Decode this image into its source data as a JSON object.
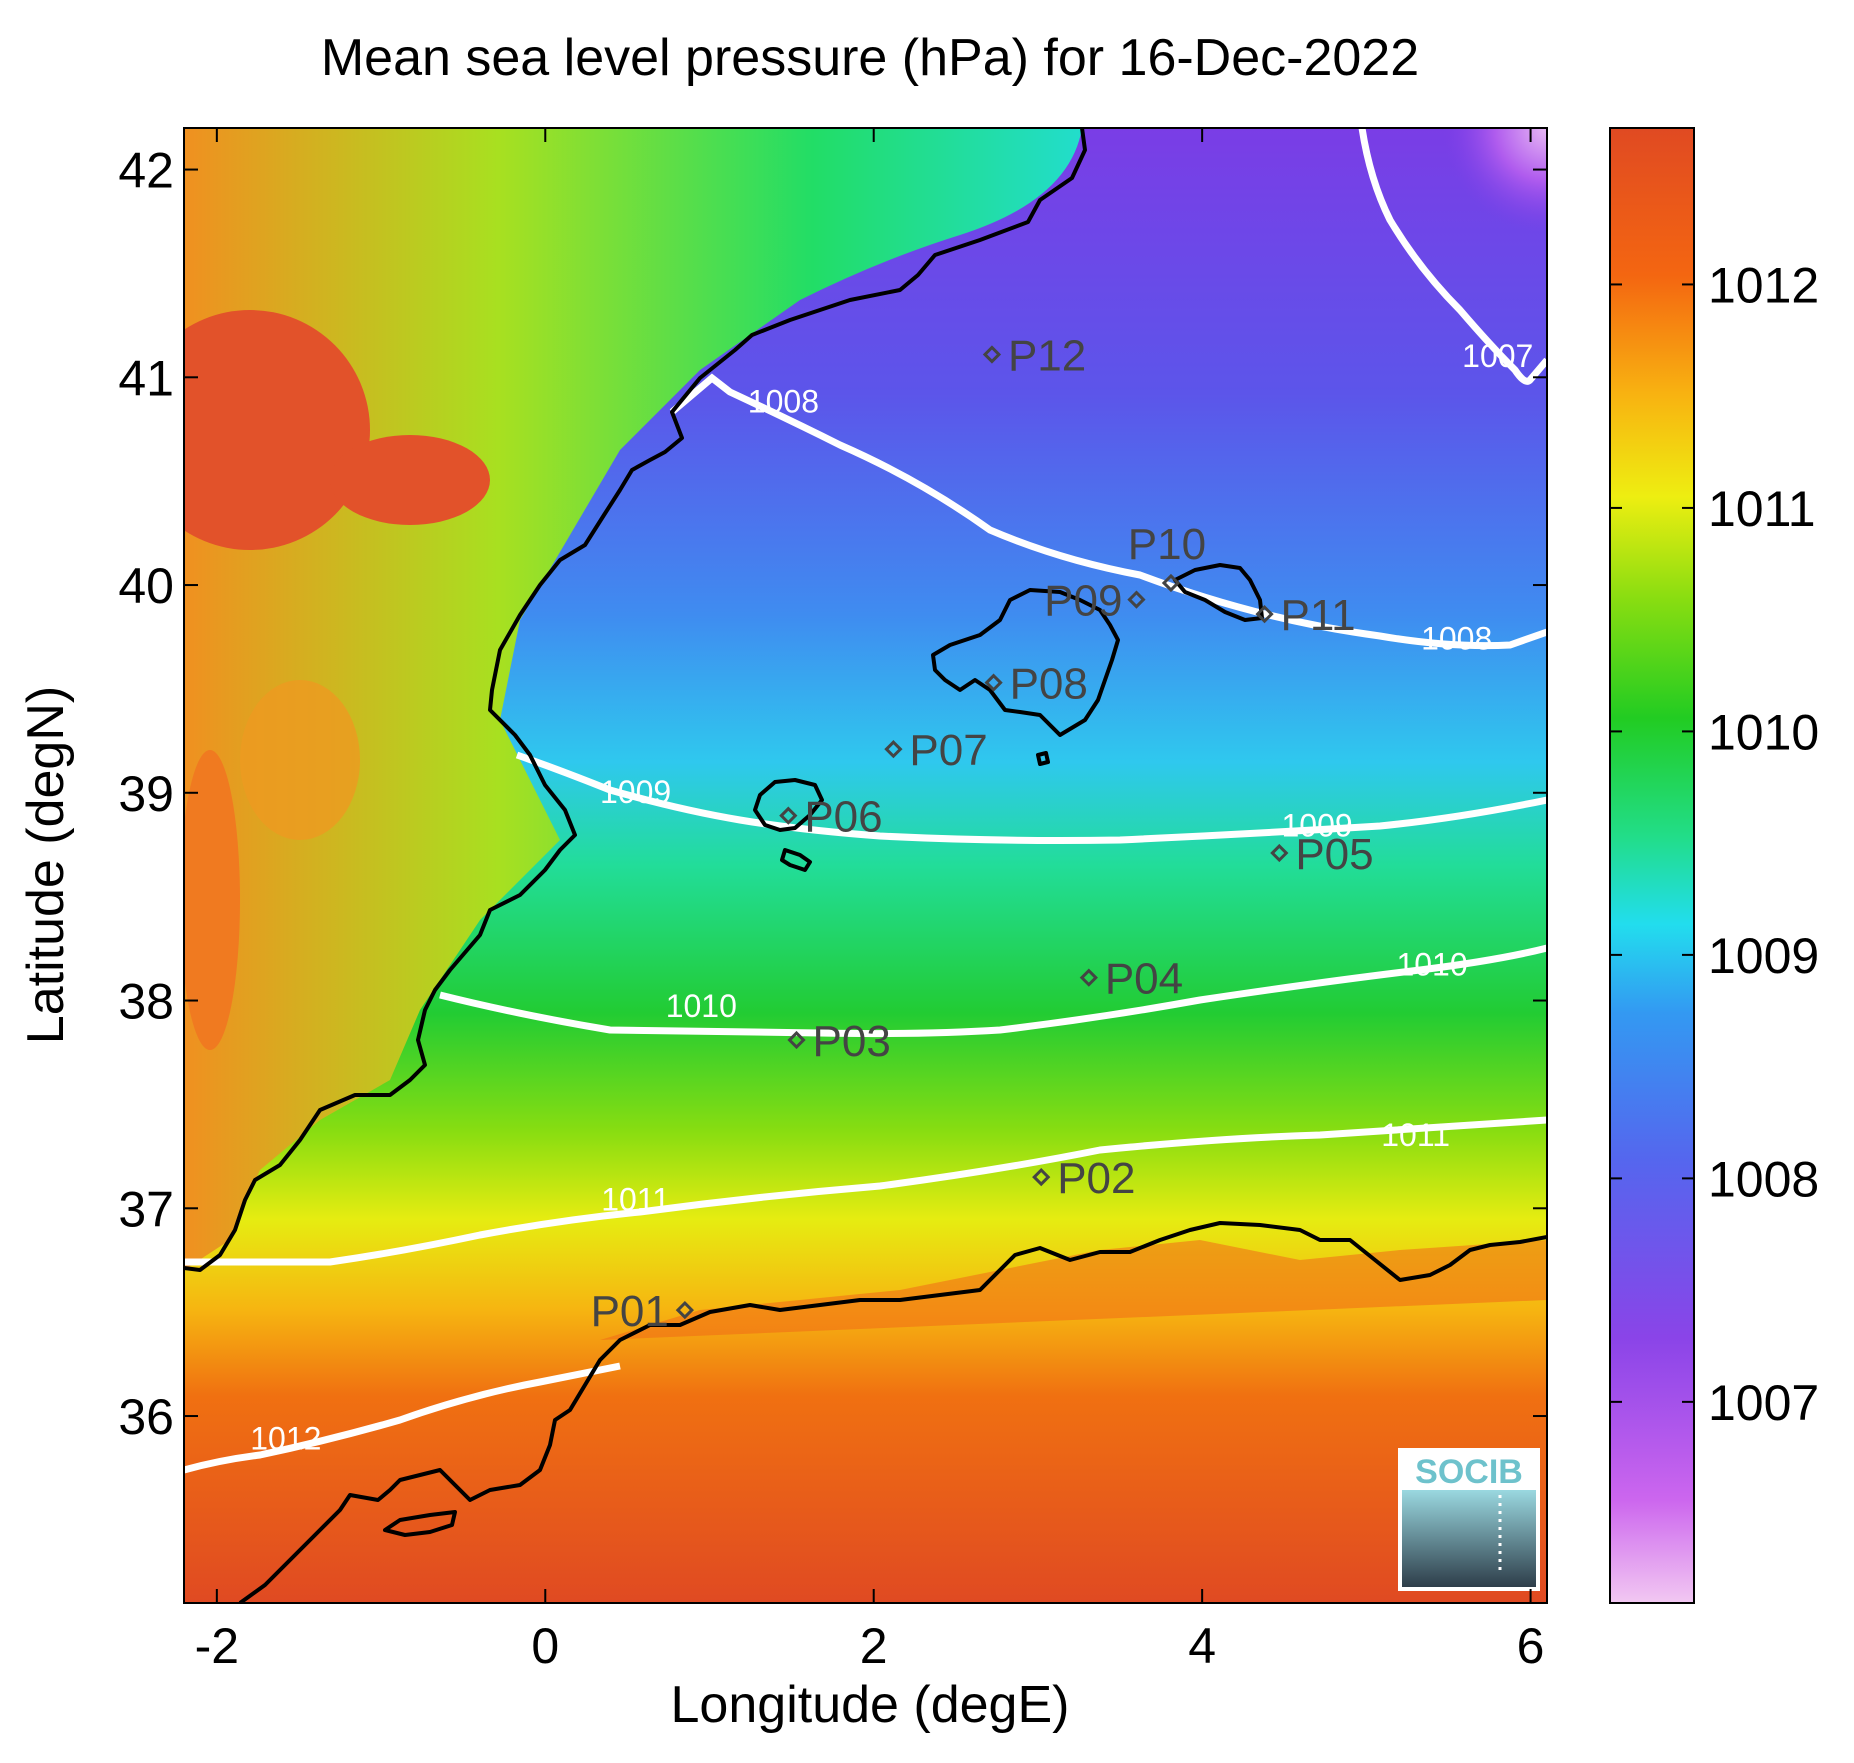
{
  "title": "Mean sea level pressure (hPa) for 16-Dec-2022",
  "xlabel": "Longitude (degE)",
  "ylabel": "Latitude (degN)",
  "x_ticks": [
    "-2",
    "0",
    "2",
    "4",
    "6"
  ],
  "y_ticks": [
    "42",
    "41",
    "40",
    "39",
    "38",
    "37",
    "36"
  ],
  "x_tick_values": [
    -2,
    0,
    2,
    4,
    6
  ],
  "y_tick_values": [
    42,
    41,
    40,
    39,
    38,
    37,
    36
  ],
  "xlim": [
    -2.2,
    6.1
  ],
  "ylim": [
    35.1,
    42.2
  ],
  "colorbar": {
    "ticks": [
      "1012",
      "1011",
      "1010",
      "1009",
      "1008",
      "1007"
    ],
    "tick_values": [
      1012,
      1011,
      1010,
      1009,
      1008,
      1007
    ],
    "range": [
      1006.1,
      1012.7
    ],
    "colors": [
      "#f2c8f2",
      "#cc66ee",
      "#8a44e8",
      "#5566ee",
      "#3399f2",
      "#22ddee",
      "#22dd88",
      "#22cc22",
      "#88dd11",
      "#eeee11",
      "#f8b211",
      "#f46611",
      "#e04a22"
    ]
  },
  "contours": [
    {
      "label": "1007",
      "label_pos": [
        5.8,
        41.05
      ]
    },
    {
      "label": "1008",
      "label_pos": [
        1.45,
        40.83
      ]
    },
    {
      "label": "1008",
      "label_pos": [
        5.55,
        39.69
      ]
    },
    {
      "label": "1009",
      "label_pos": [
        0.55,
        38.95
      ]
    },
    {
      "label": "1009",
      "label_pos": [
        4.7,
        38.79
      ]
    },
    {
      "label": "1010",
      "label_pos": [
        0.95,
        37.92
      ]
    },
    {
      "label": "1010",
      "label_pos": [
        5.4,
        38.12
      ]
    },
    {
      "label": "1011",
      "label_pos": [
        0.55,
        36.99
      ]
    },
    {
      "label": "1011",
      "label_pos": [
        5.3,
        37.3
      ]
    },
    {
      "label": "1012",
      "label_pos": [
        -1.58,
        35.84
      ]
    }
  ],
  "stations": [
    {
      "name": "P01",
      "lon": 0.85,
      "lat": 36.51,
      "label_side": "left"
    },
    {
      "name": "P02",
      "lon": 3.02,
      "lat": 37.15,
      "label_side": "right"
    },
    {
      "name": "P03",
      "lon": 1.53,
      "lat": 37.81,
      "label_side": "right"
    },
    {
      "name": "P04",
      "lon": 3.31,
      "lat": 38.11,
      "label_side": "right"
    },
    {
      "name": "P05",
      "lon": 4.47,
      "lat": 38.71,
      "label_side": "right"
    },
    {
      "name": "P06",
      "lon": 1.48,
      "lat": 38.89,
      "label_side": "right"
    },
    {
      "name": "P07",
      "lon": 2.12,
      "lat": 39.21,
      "label_side": "right"
    },
    {
      "name": "P08",
      "lon": 2.73,
      "lat": 39.53,
      "label_side": "right"
    },
    {
      "name": "P09",
      "lon": 3.6,
      "lat": 39.93,
      "label_side": "leftover"
    },
    {
      "name": "P10",
      "lon": 3.81,
      "lat": 40.01,
      "label_side": "above"
    },
    {
      "name": "P11",
      "lon": 4.38,
      "lat": 39.86,
      "label_side": "right"
    },
    {
      "name": "P12",
      "lon": 2.72,
      "lat": 41.11,
      "label_side": "right"
    }
  ],
  "logo": {
    "text": "SOCIB"
  }
}
